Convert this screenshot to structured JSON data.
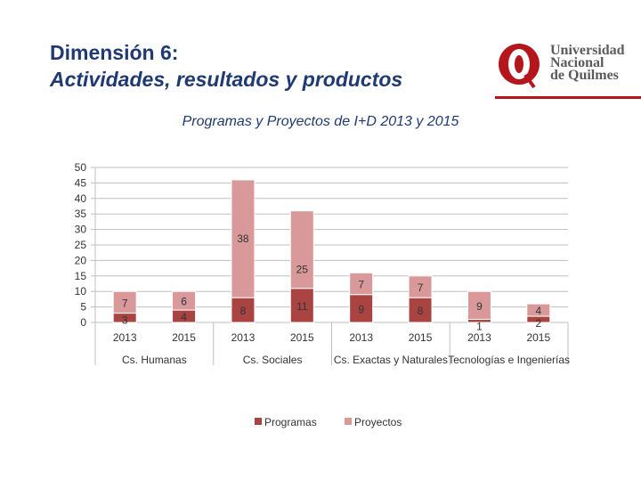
{
  "slide": {
    "title_line1": "Dimensión 6:",
    "title_line2": "Actividades, resultados y productos"
  },
  "logo": {
    "lines": [
      "Universidad",
      "Nacional",
      "de Quilmes"
    ],
    "brand_color": "#b4161b"
  },
  "chart_data": {
    "type": "bar",
    "stacked": true,
    "title": "Programas y Proyectos de I+D 2013 y 2015",
    "groups": [
      {
        "label": "Cs. Humanas",
        "categories": [
          "2013",
          "2015"
        ]
      },
      {
        "label": "Cs. Sociales",
        "categories": [
          "2013",
          "2015"
        ]
      },
      {
        "label": "Cs. Exactas y Naturales",
        "categories": [
          "2013",
          "2015"
        ]
      },
      {
        "label": "Tecnologías e Ingenierías",
        "categories": [
          "2013",
          "2015"
        ]
      }
    ],
    "series": [
      {
        "name": "Programas",
        "color": "#a94442",
        "values": [
          3,
          4,
          8,
          11,
          9,
          8,
          1,
          2
        ]
      },
      {
        "name": "Proyectos",
        "color": "#d9999a",
        "values": [
          7,
          6,
          38,
          25,
          7,
          7,
          9,
          4
        ]
      }
    ],
    "yticks": [
      50,
      45,
      40,
      35,
      30,
      25,
      20,
      15,
      10,
      5,
      0
    ],
    "ylim": [
      0,
      50
    ],
    "grid": true,
    "legend_position": "bottom"
  }
}
